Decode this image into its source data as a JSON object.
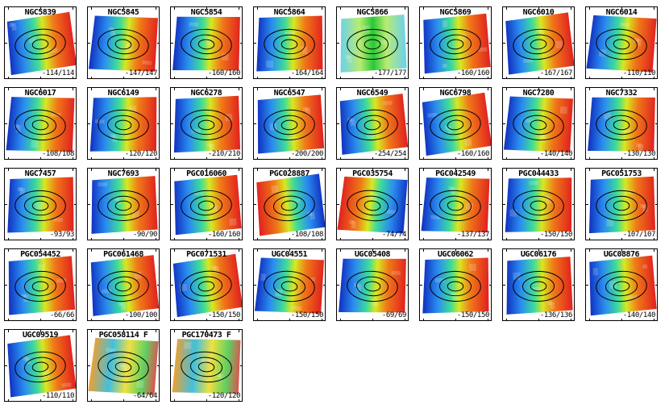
{
  "figure": {
    "galaxies": [
      {
        "name": "NGC5839",
        "range": "-114/114",
        "gradient": "red-right"
      },
      {
        "name": "NGC5845",
        "range": "-147/147",
        "gradient": "red-right"
      },
      {
        "name": "NGC5854",
        "range": "-160/160",
        "gradient": "red-right"
      },
      {
        "name": "NGC5864",
        "range": "-164/164",
        "gradient": "red-right"
      },
      {
        "name": "NGC5866",
        "range": "-177/177",
        "gradient": "green-center"
      },
      {
        "name": "NGC5869",
        "range": "-160/160",
        "gradient": "red-right"
      },
      {
        "name": "NGC6010",
        "range": "-167/167",
        "gradient": "red-right"
      },
      {
        "name": "NGC6014",
        "range": "-110/110",
        "gradient": "red-right"
      },
      {
        "name": "NGC6017",
        "range": "-108/108",
        "gradient": "red-right"
      },
      {
        "name": "NGC6149",
        "range": "-120/120",
        "gradient": "red-right"
      },
      {
        "name": "NGC6278",
        "range": "-210/210",
        "gradient": "red-right"
      },
      {
        "name": "NGC6547",
        "range": "-200/200",
        "gradient": "red-right"
      },
      {
        "name": "NGC6549",
        "range": "-254/254",
        "gradient": "red-right"
      },
      {
        "name": "NGC6798",
        "range": "-160/160",
        "gradient": "red-right"
      },
      {
        "name": "NGC7280",
        "range": "-140/140",
        "gradient": "red-right"
      },
      {
        "name": "NGC7332",
        "range": "-130/130",
        "gradient": "red-right"
      },
      {
        "name": "NGC7457",
        "range": "-93/93",
        "gradient": "red-right"
      },
      {
        "name": "NGC7693",
        "range": "-90/90",
        "gradient": "red-right"
      },
      {
        "name": "PGC016060",
        "range": "-160/160",
        "gradient": "red-right"
      },
      {
        "name": "PGC028887",
        "range": "-108/108",
        "gradient": "red-left"
      },
      {
        "name": "PGC035754",
        "range": "-74/74",
        "gradient": "red-left"
      },
      {
        "name": "PGC042549",
        "range": "-137/137",
        "gradient": "red-right"
      },
      {
        "name": "PGC044433",
        "range": "-150/150",
        "gradient": "red-right"
      },
      {
        "name": "PGC051753",
        "range": "-107/107",
        "gradient": "red-right"
      },
      {
        "name": "PGC054452",
        "range": "-66/66",
        "gradient": "red-right"
      },
      {
        "name": "PGC061468",
        "range": "-100/100",
        "gradient": "red-right"
      },
      {
        "name": "PGC071531",
        "range": "-150/150",
        "gradient": "red-right"
      },
      {
        "name": "UGC04551",
        "range": "-150/150",
        "gradient": "red-right"
      },
      {
        "name": "UGC05408",
        "range": "-69/69",
        "gradient": "red-right"
      },
      {
        "name": "UGC06062",
        "range": "-150/150",
        "gradient": "red-right"
      },
      {
        "name": "UGC06176",
        "range": "-136/136",
        "gradient": "red-right"
      },
      {
        "name": "UGC08876",
        "range": "-140/140",
        "gradient": "red-right"
      },
      {
        "name": "UGC09519",
        "range": "-110/110",
        "gradient": "red-right"
      },
      {
        "name": "PGC058114 F",
        "range": "-64/64",
        "gradient": "noisy"
      },
      {
        "name": "PGC170473 F",
        "range": "-120/120",
        "gradient": "noisy"
      }
    ]
  }
}
